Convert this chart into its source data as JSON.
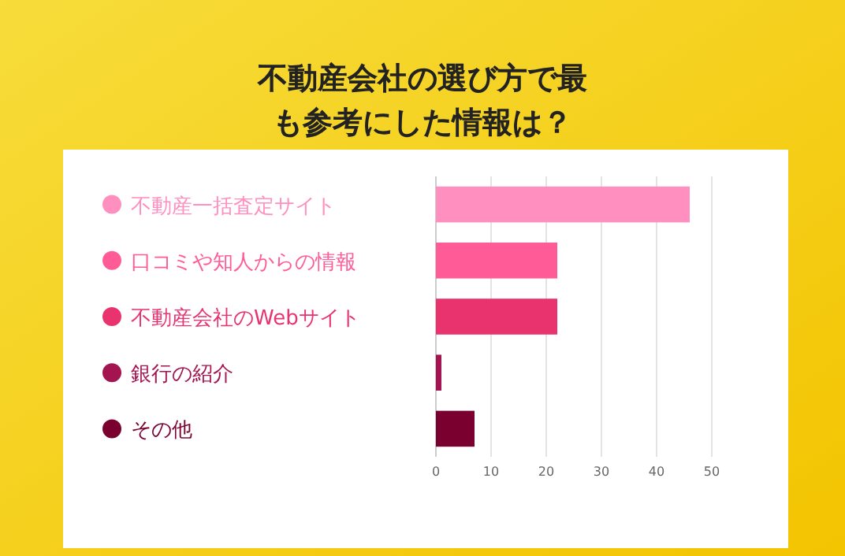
{
  "chart_data": {
    "type": "bar",
    "orientation": "horizontal",
    "title": "不動産会社の選び方で最も参考にした情報は？",
    "categories": [
      "不動産一括査定サイト",
      "口コミや知人からの情報",
      "不動産会社のWebサイト",
      "銀行の紹介",
      "その他"
    ],
    "values": [
      46,
      22,
      22,
      1,
      7
    ],
    "colors": [
      "#ff8fbf",
      "#ff5c97",
      "#e8336f",
      "#a31450",
      "#7a0030"
    ],
    "xlim": [
      0,
      50
    ],
    "xticks": [
      0,
      10,
      20,
      30,
      40,
      50
    ],
    "grid": "x"
  }
}
